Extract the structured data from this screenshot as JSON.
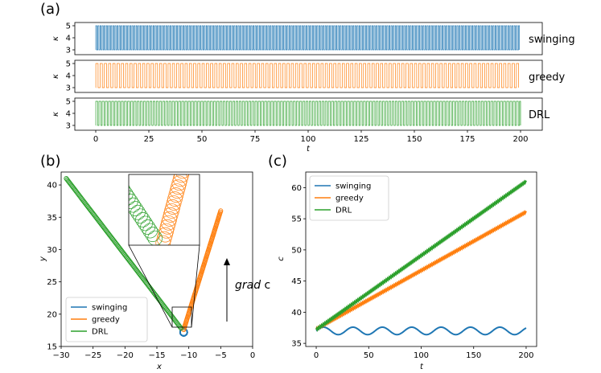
{
  "colors": {
    "swinging": "#1f77b4",
    "greedy": "#ff7f0e",
    "DRL": "#2ca02c"
  },
  "panels": {
    "a": "(a)",
    "b": "(b)",
    "c": "(c)"
  },
  "chart_data": [
    {
      "id": "a",
      "type": "line",
      "xlabel": "t",
      "ylabel": "κ",
      "xlim": [
        0,
        200
      ],
      "ylim": [
        3,
        5
      ],
      "xticks": [
        "0",
        "25",
        "50",
        "75",
        "100",
        "125",
        "150",
        "175",
        "200"
      ],
      "yticks": [
        "3",
        "4",
        "5"
      ],
      "rows": [
        {
          "name": "swinging",
          "label": "swinging",
          "period": 1.0,
          "duty": 0.5,
          "low": 3,
          "high": 5
        },
        {
          "name": "greedy",
          "label": "greedy",
          "period": 2.0,
          "duty": 0.55,
          "low": 3,
          "high": 5
        },
        {
          "name": "DRL",
          "label": "DRL",
          "period": 1.5,
          "duty": 0.6,
          "low": 3,
          "high": 5
        }
      ]
    },
    {
      "id": "b",
      "type": "scatter",
      "xlabel": "x",
      "ylabel": "y",
      "xlim": [
        -30,
        0
      ],
      "ylim": [
        15,
        42
      ],
      "xticks": [
        "−30",
        "−25",
        "−20",
        "−15",
        "−10",
        "−5",
        "0"
      ],
      "yticks": [
        "15",
        "20",
        "25",
        "30",
        "35",
        "40"
      ],
      "annotation": {
        "prefix": "grad",
        "suffix": " c"
      },
      "series": [
        {
          "name": "swinging",
          "label": "swinging",
          "start": [
            -10.8,
            17.2
          ],
          "end": [
            -10.8,
            17.2
          ],
          "n": 12
        },
        {
          "name": "greedy",
          "label": "greedy",
          "start": [
            -10.8,
            17.6
          ],
          "end": [
            -5.0,
            36.0
          ],
          "n": 110
        },
        {
          "name": "DRL",
          "label": "DRL",
          "start": [
            -11.2,
            17.8
          ],
          "end": [
            -29.2,
            41.0
          ],
          "n": 150
        }
      ],
      "inset": {
        "xlim": [
          -12.5,
          -9.0
        ],
        "ylim": [
          17.5,
          20.5
        ]
      }
    },
    {
      "id": "c",
      "type": "line",
      "xlabel": "t",
      "ylabel": "c",
      "xlim": [
        -10,
        210
      ],
      "ylim": [
        34.5,
        62.5
      ],
      "xticks": [
        "0",
        "50",
        "100",
        "150",
        "200"
      ],
      "yticks": [
        "35",
        "40",
        "45",
        "50",
        "55",
        "60"
      ],
      "series": [
        {
          "name": "swinging",
          "label": "swinging",
          "x": [
            0,
            200
          ],
          "y": [
            37.0,
            37.0
          ],
          "amplitude": 0.6,
          "period": 28
        },
        {
          "name": "greedy",
          "label": "greedy",
          "x": [
            0,
            200
          ],
          "y": [
            37.3,
            56.1
          ],
          "amplitude": 0.15,
          "period": 1.5
        },
        {
          "name": "DRL",
          "label": "DRL",
          "x": [
            0,
            200
          ],
          "y": [
            37.2,
            61.0
          ],
          "amplitude": 0.15,
          "period": 1.5
        }
      ]
    }
  ]
}
